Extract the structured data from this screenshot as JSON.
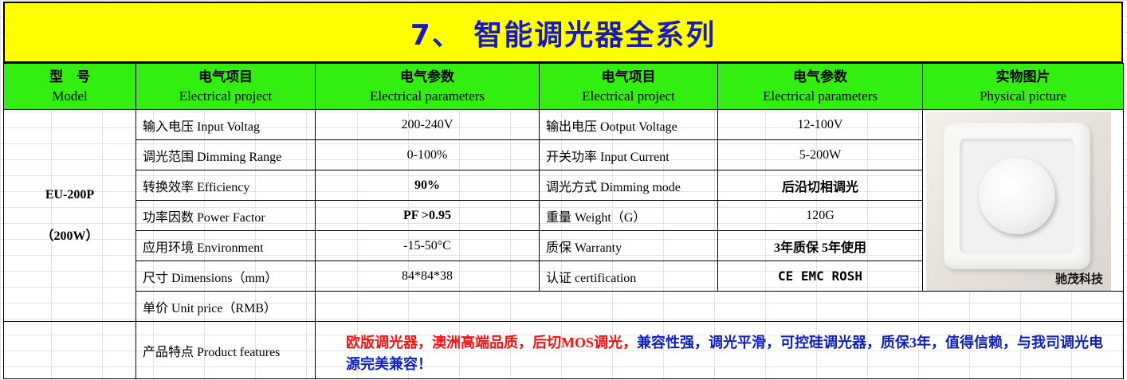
{
  "title": "7、 智能调光器全系列",
  "headers": [
    {
      "cn": "型　号",
      "en": "Model"
    },
    {
      "cn": "电气项目",
      "en": "Electrical project"
    },
    {
      "cn": "电气参数",
      "en": "Electrical parameters"
    },
    {
      "cn": "电气项目",
      "en": "Electrical project"
    },
    {
      "cn": "电气参数",
      "en": "Electrical parameters"
    },
    {
      "cn": "实物图片",
      "en": "Physical picture"
    }
  ],
  "model": {
    "name": "EU-200P",
    "power": "（200W）"
  },
  "rows": [
    {
      "label1": "输入电压 Input Voltag",
      "value1": "200-240V",
      "label2": "输出电压 Ootput Voltage",
      "value2": "12-100V"
    },
    {
      "label1": "调光范围 Dimming Range",
      "value1": "0-100%",
      "label2": "开关功率 Input Current",
      "value2": "5-200W"
    },
    {
      "label1": "转换效率 Efficiency",
      "value1": "90%",
      "label2": "调光方式 Dimming mode",
      "value2": "后沿切相调光"
    },
    {
      "label1": "功率因数 Power Factor",
      "value1": "PF >0.95",
      "label2": "重量 Weight（G）",
      "value2": "120G"
    },
    {
      "label1": "应用环境 Environment",
      "value1": "-15-50°C",
      "label2": "质保 Warranty",
      "value2": "3年质保  5年使用"
    },
    {
      "label1": "尺寸 Dimensions（mm）",
      "value1": "84*84*38",
      "label2": "认证 certification",
      "value2": "CE EMC ROSH"
    }
  ],
  "unit_price": {
    "label": "单价 Unit price（RMB）",
    "value": ""
  },
  "features": {
    "label": "产品特点 Product features",
    "text_red": "欧版调光器，澳洲高端品质，后切MOS调光，",
    "text_blue": "兼容性强，调光平滑，可控硅调光器，质保3年，值得信赖，与我司调光电源完美兼容！"
  },
  "photo_brand": "驰茂科技",
  "colors": {
    "title_bg": "#ffff00",
    "title_text": "#1a1ab8",
    "header_bg": "#33ee11",
    "highlight": "#ff0000",
    "feature_blue": "#1020c0"
  }
}
